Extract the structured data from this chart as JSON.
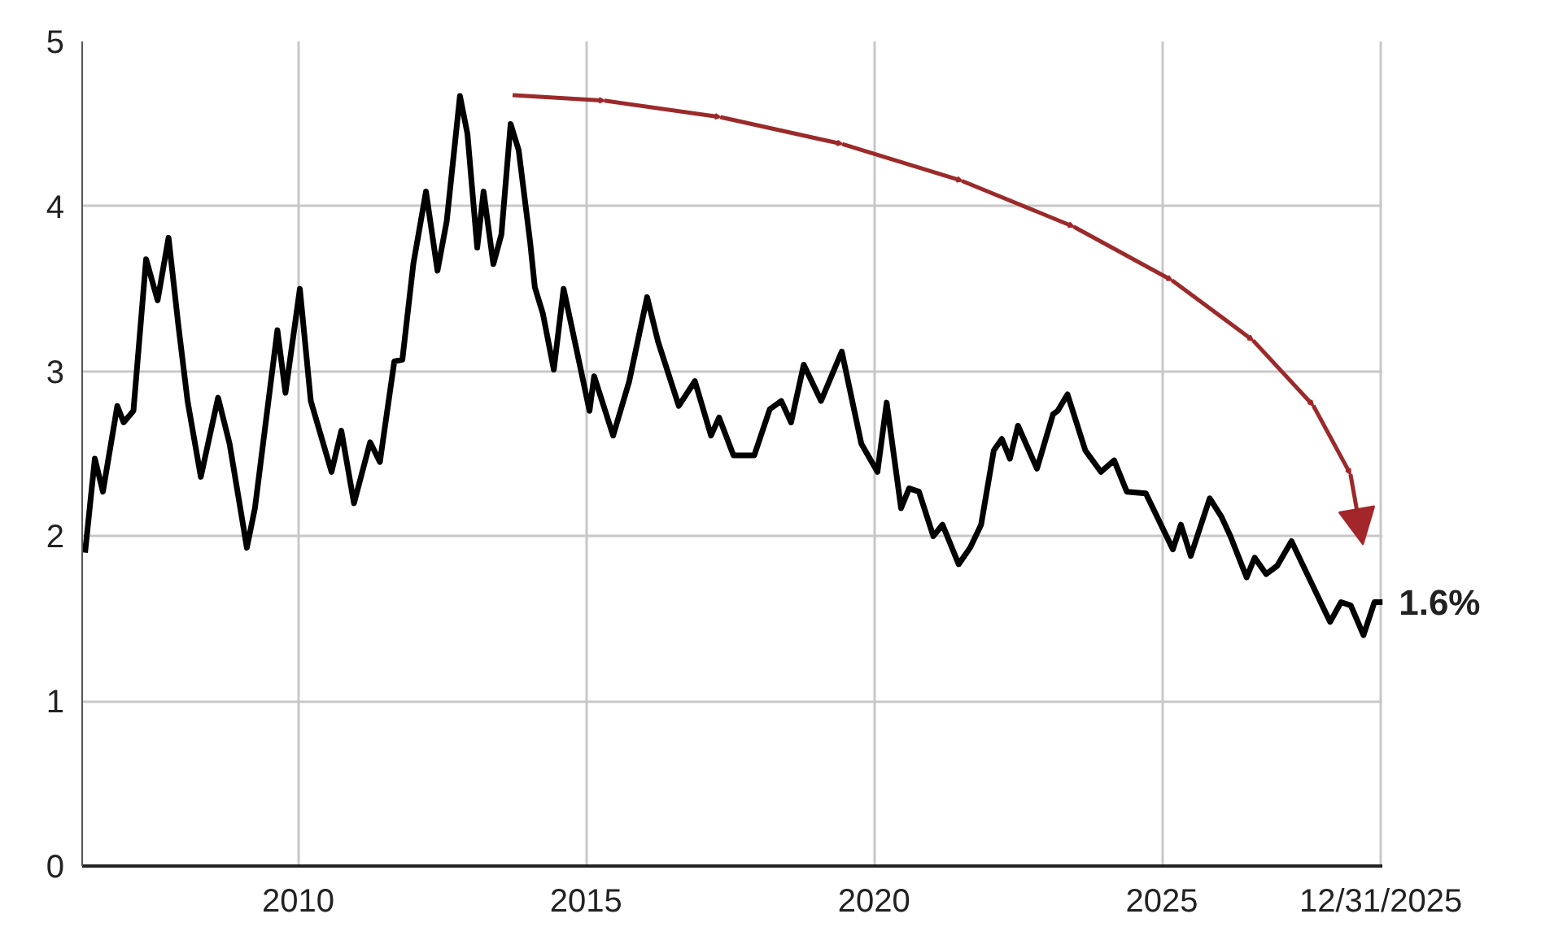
{
  "chart_data": {
    "type": "line",
    "x": [
      2006.3,
      2006.47,
      2006.61,
      2006.86,
      2006.97,
      2007.14,
      2007.36,
      2007.56,
      2007.75,
      2007.92,
      2008.08,
      2008.31,
      2008.61,
      2008.81,
      2009.11,
      2009.25,
      2009.64,
      2009.78,
      2010.03,
      2010.22,
      2010.58,
      2010.75,
      2010.97,
      2011.25,
      2011.42,
      2011.67,
      2011.81,
      2012.0,
      2012.22,
      2012.42,
      2012.58,
      2012.81,
      2012.94,
      2013.11,
      2013.22,
      2013.39,
      2013.53,
      2013.69,
      2013.83,
      2014.03,
      2014.11,
      2014.25,
      2014.44,
      2014.61,
      2014.72,
      2015.06,
      2015.14,
      2015.47,
      2015.75,
      2016.06,
      2016.25,
      2016.61,
      2016.89,
      2017.17,
      2017.31,
      2017.56,
      2017.92,
      2018.19,
      2018.39,
      2018.56,
      2018.78,
      2019.08,
      2019.44,
      2019.78,
      2020.06,
      2020.22,
      2020.47,
      2020.61,
      2020.78,
      2021.03,
      2021.19,
      2021.47,
      2021.67,
      2021.86,
      2022.08,
      2022.22,
      2022.36,
      2022.5,
      2022.83,
      2023.11,
      2023.19,
      2023.36,
      2023.67,
      2023.94,
      2024.17,
      2024.39,
      2024.72,
      2025.19,
      2025.33,
      2025.5,
      2025.83,
      2026.03,
      2026.19,
      2026.47,
      2026.61,
      2026.81,
      2027.0,
      2027.25,
      2027.44,
      2027.92,
      2028.11,
      2028.28,
      2028.5,
      2028.69,
      2028.83
    ],
    "series": [
      {
        "color": "#000000",
        "values": [
          1.9,
          2.47,
          2.27,
          2.79,
          2.69,
          2.76,
          3.68,
          3.43,
          3.81,
          3.28,
          2.82,
          2.36,
          2.84,
          2.56,
          1.93,
          2.17,
          3.25,
          2.87,
          3.5,
          2.82,
          2.39,
          2.64,
          2.2,
          2.57,
          2.45,
          3.06,
          3.07,
          3.65,
          4.09,
          3.61,
          3.91,
          4.67,
          4.44,
          3.75,
          4.09,
          3.65,
          3.83,
          4.5,
          4.34,
          3.78,
          3.51,
          3.35,
          3.01,
          3.5,
          3.32,
          2.76,
          2.97,
          2.61,
          2.94,
          3.45,
          3.18,
          2.79,
          2.94,
          2.61,
          2.72,
          2.49,
          2.49,
          2.77,
          2.82,
          2.69,
          3.04,
          2.82,
          3.12,
          2.56,
          2.39,
          2.81,
          2.17,
          2.29,
          2.27,
          2.0,
          2.07,
          1.83,
          1.93,
          2.07,
          2.52,
          2.59,
          2.47,
          2.67,
          2.41,
          2.74,
          2.76,
          2.86,
          2.52,
          2.39,
          2.46,
          2.27,
          2.26,
          1.92,
          2.07,
          1.88,
          2.23,
          2.12,
          2.0,
          1.75,
          1.87,
          1.77,
          1.82,
          1.97,
          1.83,
          1.48,
          1.6,
          1.58,
          1.4,
          1.6,
          1.6
        ]
      }
    ],
    "xlim": [
      2006.25,
      2028.83
    ],
    "ylim": [
      0,
      5
    ],
    "xticks": [
      2010,
      2015,
      2020,
      2025,
      {
        "value": 2028.8,
        "label": "12/31/2025"
      }
    ],
    "yticks": [
      0,
      1,
      2,
      3,
      4,
      5
    ],
    "grid": true,
    "marker": "none",
    "line_style": "solid",
    "annotations": [
      {
        "text": "1.6%",
        "x": 2028.83,
        "y": 1.6
      }
    ]
  }
}
